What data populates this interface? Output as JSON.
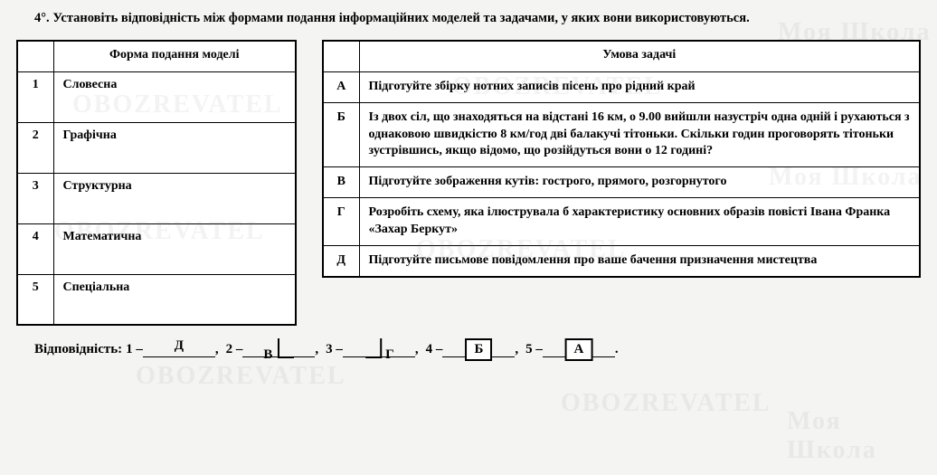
{
  "task": {
    "number": "4°.",
    "prompt": "Установіть відповідність між формами подання інформаційних моделей та задачами, у яких вони використовуються."
  },
  "left_table": {
    "headers": [
      "",
      "Форма подання моделі"
    ],
    "rows": [
      {
        "num": "1",
        "text": "Словесна"
      },
      {
        "num": "2",
        "text": "Графічна"
      },
      {
        "num": "3",
        "text": "Структурна"
      },
      {
        "num": "4",
        "text": "Математична"
      },
      {
        "num": "5",
        "text": "Спеціальна"
      }
    ]
  },
  "right_table": {
    "headers": [
      "",
      "Умова задачі"
    ],
    "rows": [
      {
        "letter": "А",
        "text": "Підготуйте збірку нотних записів пісень про рідний край"
      },
      {
        "letter": "Б",
        "text": "Із двох сіл, що знаходяться на відстані 16 км, о 9.00 вийшли назустріч одна одній і рухаються з однаковою швидкістю 8 км/год дві балакучі тітоньки. Скільки годин проговорять тітоньки зустрівшись, якщо відомо, що розійдуться вони о 12 годині?"
      },
      {
        "letter": "В",
        "text": "Підготуйте зображення кутів: гострого, прямого, розгорнутого"
      },
      {
        "letter": "Г",
        "text": "Розробіть схему, яка ілюструвала б характеристику основних образів повісті Івана Франка «Захар Беркут»"
      },
      {
        "letter": "Д",
        "text": "Підготуйте письмове повідомлення про ваше бачення призначення мистецтва"
      }
    ]
  },
  "answers": {
    "label": "Відповідність:",
    "items": [
      {
        "num": "1",
        "letter": "Д",
        "style": "plain"
      },
      {
        "num": "2",
        "letter": "В",
        "style": "lbracket"
      },
      {
        "num": "3",
        "letter": "Г",
        "style": "rbracket"
      },
      {
        "num": "4",
        "letter": "Б",
        "style": "box"
      },
      {
        "num": "5",
        "letter": "А",
        "style": "box"
      }
    ]
  },
  "watermark": "OBOZREVATEL",
  "watermark2": "Моя Школа"
}
